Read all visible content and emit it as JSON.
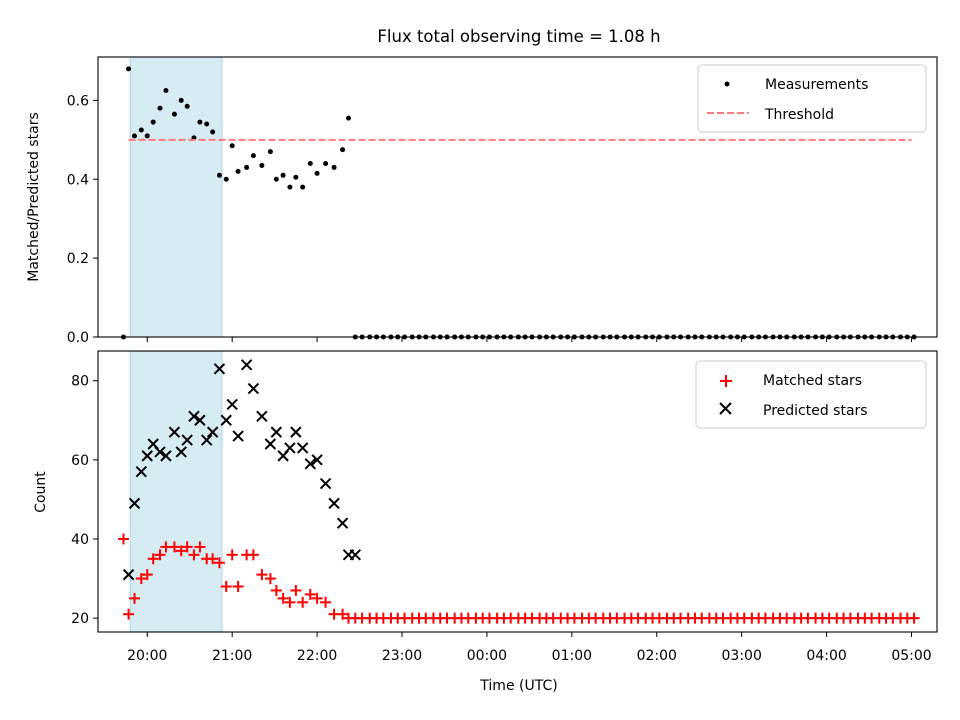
{
  "figure": {
    "title": "Flux total observing time = 1.08 h"
  },
  "chart_data": [
    {
      "type": "scatter",
      "ylabel": "Matched/Predicted stars",
      "xlabel": "",
      "xlim": [
        -0.58,
        9.3
      ],
      "ylim": [
        0.0,
        0.71
      ],
      "yticks": [
        0.0,
        0.2,
        0.4,
        0.6
      ],
      "ytick_labels": [
        "0.0",
        "0.2",
        "0.4",
        "0.6"
      ],
      "grid": false,
      "legend_position": "top-right",
      "shaded_span": {
        "x0": -0.2,
        "x1": 0.88,
        "color": "#add8e6"
      },
      "series": [
        {
          "name": "Measurements",
          "marker": "dot",
          "color": "#000000",
          "x": [
            -0.28,
            -0.22,
            -0.15,
            -0.07,
            0.0,
            0.07,
            0.15,
            0.22,
            0.32,
            0.4,
            0.47,
            0.55,
            0.62,
            0.7,
            0.77,
            0.85,
            0.93,
            1.0,
            1.07,
            1.17,
            1.25,
            1.35,
            1.45,
            1.52,
            1.6,
            1.68,
            1.75,
            1.83,
            1.92,
            2.0,
            2.1,
            2.2,
            2.3,
            2.37,
            2.45,
            2.53,
            2.62,
            2.7,
            2.78,
            2.87,
            2.95,
            3.03,
            3.12,
            3.2,
            3.28,
            3.37,
            3.45,
            3.53,
            3.62,
            3.7,
            3.78,
            3.87,
            3.95,
            4.03,
            4.12,
            4.2,
            4.28,
            4.37,
            4.45,
            4.53,
            4.62,
            4.7,
            4.78,
            4.87,
            4.95,
            5.03,
            5.12,
            5.2,
            5.28,
            5.37,
            5.45,
            5.53,
            5.62,
            5.7,
            5.78,
            5.87,
            5.95,
            6.03,
            6.12,
            6.2,
            6.28,
            6.37,
            6.45,
            6.53,
            6.62,
            6.7,
            6.78,
            6.87,
            6.95,
            7.03,
            7.12,
            7.2,
            7.28,
            7.37,
            7.45,
            7.53,
            7.62,
            7.7,
            7.78,
            7.87,
            7.95,
            8.03,
            8.12,
            8.2,
            8.28,
            8.37,
            8.45,
            8.53,
            8.62,
            8.7,
            8.78,
            8.87,
            8.95,
            9.03
          ],
          "y": [
            0.0,
            0.68,
            0.51,
            0.525,
            0.51,
            0.545,
            0.58,
            0.625,
            0.565,
            0.6,
            0.585,
            0.505,
            0.545,
            0.54,
            0.52,
            0.41,
            0.4,
            0.485,
            0.42,
            0.43,
            0.46,
            0.435,
            0.47,
            0.4,
            0.41,
            0.38,
            0.405,
            0.38,
            0.44,
            0.415,
            0.44,
            0.43,
            0.475,
            0.555,
            0.0,
            0.0,
            0.0,
            0.0,
            0.0,
            0.0,
            0.0,
            0.0,
            0.0,
            0.0,
            0.0,
            0.0,
            0.0,
            0.0,
            0.0,
            0.0,
            0.0,
            0.0,
            0.0,
            0.0,
            0.0,
            0.0,
            0.0,
            0.0,
            0.0,
            0.0,
            0.0,
            0.0,
            0.0,
            0.0,
            0.0,
            0.0,
            0.0,
            0.0,
            0.0,
            0.0,
            0.0,
            0.0,
            0.0,
            0.0,
            0.0,
            0.0,
            0.0,
            0.0,
            0.0,
            0.0,
            0.0,
            0.0,
            0.0,
            0.0,
            0.0,
            0.0,
            0.0,
            0.0,
            0.0,
            0.0,
            0.0,
            0.0,
            0.0,
            0.0,
            0.0,
            0.0,
            0.0,
            0.0,
            0.0,
            0.0,
            0.0,
            0.0,
            0.0,
            0.0,
            0.0,
            0.0,
            0.0,
            0.0,
            0.0,
            0.0,
            0.0,
            0.0,
            0.0,
            0.0
          ]
        },
        {
          "name": "Threshold",
          "marker": "dashed-line",
          "color": "#ff7b7b",
          "x": [
            -0.22,
            9.0
          ],
          "y": [
            0.5,
            0.5
          ]
        }
      ]
    },
    {
      "type": "scatter",
      "ylabel": "Count",
      "xlabel": "Time (UTC)",
      "xlim": [
        -0.58,
        9.3
      ],
      "ylim": [
        16.5,
        87.5
      ],
      "yticks": [
        20,
        40,
        60,
        80
      ],
      "ytick_labels": [
        "20",
        "40",
        "60",
        "80"
      ],
      "xticks": [
        0,
        1,
        2,
        3,
        4,
        5,
        6,
        7,
        8,
        9
      ],
      "xtick_labels": [
        "20:00",
        "21:00",
        "22:00",
        "23:00",
        "00:00",
        "01:00",
        "02:00",
        "03:00",
        "04:00",
        "05:00"
      ],
      "grid": false,
      "legend_position": "top-right",
      "shaded_span": {
        "x0": -0.2,
        "x1": 0.88,
        "color": "#add8e6"
      },
      "series": [
        {
          "name": "Matched stars",
          "marker": "plus",
          "color": "#ff0000",
          "x": [
            -0.28,
            -0.22,
            -0.15,
            -0.07,
            0.0,
            0.07,
            0.15,
            0.22,
            0.32,
            0.4,
            0.47,
            0.55,
            0.62,
            0.7,
            0.77,
            0.85,
            0.93,
            1.0,
            1.07,
            1.17,
            1.25,
            1.35,
            1.45,
            1.52,
            1.6,
            1.68,
            1.75,
            1.83,
            1.92,
            2.0,
            2.1,
            2.2,
            2.3,
            2.37,
            2.45,
            2.53,
            2.62,
            2.7,
            2.78,
            2.87,
            2.95,
            3.03,
            3.12,
            3.2,
            3.28,
            3.37,
            3.45,
            3.53,
            3.62,
            3.7,
            3.78,
            3.87,
            3.95,
            4.03,
            4.12,
            4.2,
            4.28,
            4.37,
            4.45,
            4.53,
            4.62,
            4.7,
            4.78,
            4.87,
            4.95,
            5.03,
            5.12,
            5.2,
            5.28,
            5.37,
            5.45,
            5.53,
            5.62,
            5.7,
            5.78,
            5.87,
            5.95,
            6.03,
            6.12,
            6.2,
            6.28,
            6.37,
            6.45,
            6.53,
            6.62,
            6.7,
            6.78,
            6.87,
            6.95,
            7.03,
            7.12,
            7.2,
            7.28,
            7.37,
            7.45,
            7.53,
            7.62,
            7.7,
            7.78,
            7.87,
            7.95,
            8.03,
            8.12,
            8.2,
            8.28,
            8.37,
            8.45,
            8.53,
            8.62,
            8.7,
            8.78,
            8.87,
            8.95,
            9.03
          ],
          "y": [
            40,
            21,
            25,
            30,
            31,
            35,
            36,
            38,
            38,
            37,
            38,
            36,
            38,
            35,
            35,
            34,
            28,
            36,
            28,
            36,
            36,
            31,
            30,
            27,
            25,
            24,
            27,
            24,
            26,
            25,
            24,
            21,
            21,
            20,
            20,
            20,
            20,
            20,
            20,
            20,
            20,
            20,
            20,
            20,
            20,
            20,
            20,
            20,
            20,
            20,
            20,
            20,
            20,
            20,
            20,
            20,
            20,
            20,
            20,
            20,
            20,
            20,
            20,
            20,
            20,
            20,
            20,
            20,
            20,
            20,
            20,
            20,
            20,
            20,
            20,
            20,
            20,
            20,
            20,
            20,
            20,
            20,
            20,
            20,
            20,
            20,
            20,
            20,
            20,
            20,
            20,
            20,
            20,
            20,
            20,
            20,
            20,
            20,
            20,
            20,
            20,
            20,
            20,
            20,
            20,
            20,
            20,
            20,
            20,
            20,
            20,
            20,
            20,
            20
          ]
        },
        {
          "name": "Predicted stars",
          "marker": "x",
          "color": "#000000",
          "x": [
            -0.22,
            -0.15,
            -0.07,
            0.0,
            0.07,
            0.15,
            0.22,
            0.32,
            0.4,
            0.47,
            0.55,
            0.62,
            0.7,
            0.77,
            0.85,
            0.93,
            1.0,
            1.07,
            1.17,
            1.25,
            1.35,
            1.45,
            1.52,
            1.6,
            1.68,
            1.75,
            1.83,
            1.92,
            2.0,
            2.1,
            2.2,
            2.3,
            2.37,
            2.45
          ],
          "y": [
            31,
            49,
            57,
            61,
            64,
            62,
            61,
            67,
            62,
            65,
            71,
            70,
            65,
            67,
            83,
            70,
            74,
            66,
            84,
            78,
            71,
            64,
            67,
            61,
            63,
            67,
            63,
            59,
            60,
            54,
            49,
            44,
            36,
            36
          ]
        }
      ]
    }
  ]
}
